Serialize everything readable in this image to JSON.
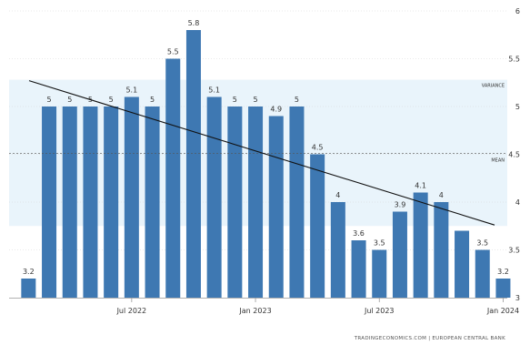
{
  "chart_data": {
    "type": "bar",
    "categories": [
      "2022-02",
      "2022-03",
      "2022-04",
      "2022-05",
      "2022-06",
      "2022-07",
      "2022-08",
      "2022-09",
      "2022-10",
      "2022-11",
      "2022-12",
      "2023-01",
      "2023-02",
      "2023-03",
      "2023-04",
      "2023-05",
      "2023-06",
      "2023-07",
      "2023-08",
      "2023-09",
      "2023-10",
      "2023-11",
      "2023-12",
      "2024-01"
    ],
    "values": [
      3.2,
      5,
      5,
      5,
      5,
      5.1,
      5,
      5.5,
      5.8,
      5.1,
      5,
      5,
      4.9,
      5,
      4.5,
      4,
      3.6,
      3.5,
      3.9,
      4.1,
      4,
      3.7,
      3.5,
      3.2
    ],
    "data_labels": [
      "3.2",
      "5",
      "5",
      "5",
      "5",
      "5.1",
      "5",
      "5.5",
      "5.8",
      "5.1",
      "5",
      "5",
      "4.9",
      "5",
      "4.5",
      "4",
      "3.6",
      "3.5",
      "3.9",
      "4.1",
      "4",
      "",
      "3.5",
      "3.2"
    ],
    "x_tick_labels": [
      {
        "text": "Jul 2022",
        "category": "2022-07"
      },
      {
        "text": "Jan 2023",
        "category": "2023-01"
      },
      {
        "text": "Jul 2023",
        "category": "2023-07"
      },
      {
        "text": "Jan 2024",
        "category": "2024-01"
      }
    ],
    "y_ticks": [
      3,
      3.5,
      4,
      4.5,
      5,
      5.5,
      6
    ],
    "ylim": [
      3,
      6
    ],
    "y_axis_side": "right",
    "trend_line": {
      "start": 5.27,
      "end": 3.76
    },
    "variance_band": {
      "low": 3.75,
      "high": 5.28,
      "label": "VARIANCE"
    },
    "mean_line": {
      "value": 4.51,
      "label": "MEAN"
    },
    "grid": true,
    "source": "TRADINGECONOMICS.COM  |  EUROPEAN CENTRAL BANK",
    "title": "",
    "xlabel": "",
    "ylabel": "",
    "colors": {
      "bar": "#3e78b2",
      "band": "#e9f4fb",
      "trend": "#111111",
      "mean": "#555555"
    }
  }
}
